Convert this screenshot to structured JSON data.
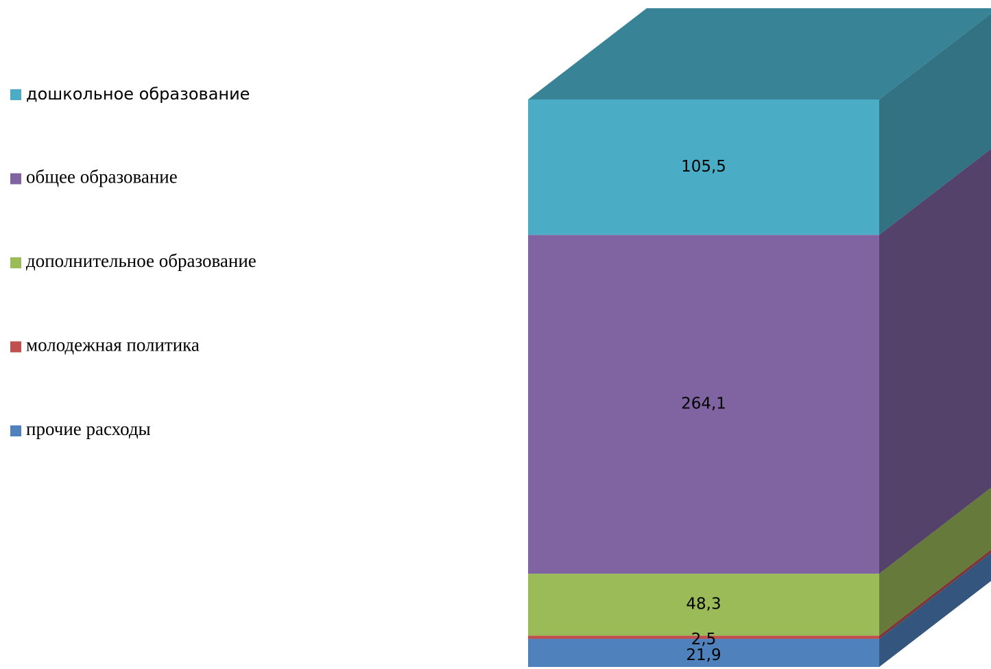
{
  "chart_data": {
    "type": "bar3d_stacked",
    "series": [
      {
        "name": "прочие расходы",
        "color": "#4f81bd",
        "values": [
          21.9
        ],
        "value_labels": [
          "21,9"
        ]
      },
      {
        "name": "молодежная политика",
        "color": "#c0504d",
        "values": [
          2.5
        ],
        "value_labels": [
          "2,5"
        ]
      },
      {
        "name": "дополнительное образование",
        "color": "#9bbb59",
        "values": [
          48.3
        ],
        "value_labels": [
          "48,3"
        ]
      },
      {
        "name": "общее образование",
        "color": "#8064a2",
        "values": [
          264.1
        ],
        "value_labels": [
          "264,1"
        ]
      },
      {
        "name": "дошкольное образование",
        "color": "#4bacc6",
        "values": [
          105.5
        ],
        "value_labels": [
          "105,5"
        ]
      }
    ]
  }
}
